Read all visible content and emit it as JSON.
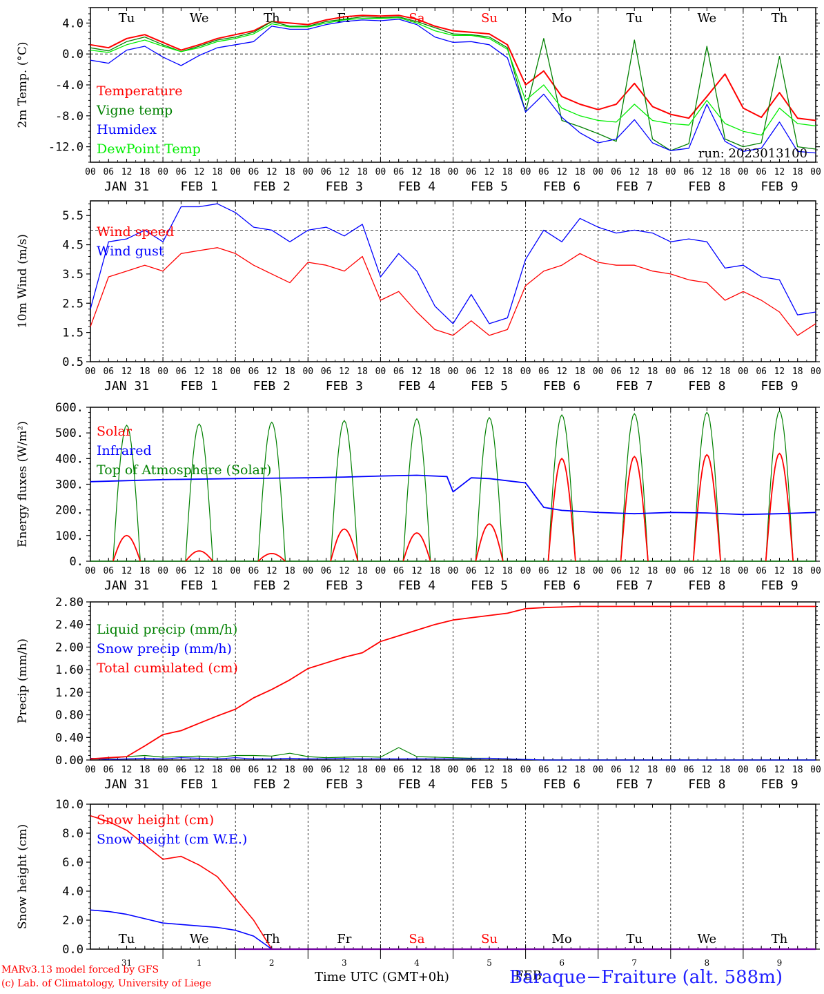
{
  "chart_data": [
    {
      "type": "line",
      "ylabel": "2m Temp. (°C)",
      "ylim": [
        -14.0,
        6.0
      ],
      "yticks": [
        "4.0",
        "0.0",
        "-4.0",
        "-8.0",
        "-12.0"
      ],
      "yticks_values": [
        4,
        0,
        -4,
        -8,
        -12
      ],
      "reference_line": 0,
      "day_labels": [
        "Tu",
        "We",
        "Th",
        "Fr",
        "Sa",
        "Su",
        "Mo",
        "Tu",
        "We",
        "Th"
      ],
      "day_label_colors": [
        "#000000",
        "#000000",
        "#000000",
        "#000000",
        "#ff0000",
        "#ff0000",
        "#000000",
        "#000000",
        "#000000",
        "#000000"
      ],
      "run_label": "run: 2023013100",
      "legend": [
        {
          "name": "Temperature",
          "color": "#ff0000"
        },
        {
          "name": "Vigne temp",
          "color": "#008000"
        },
        {
          "name": "Humidex",
          "color": "#0000ff"
        },
        {
          "name": "DewPoint Temp",
          "color": "#00ee00"
        }
      ],
      "x_hours": [
        0,
        6,
        12,
        18,
        24,
        30,
        36,
        42,
        48,
        54,
        60,
        66,
        72,
        78,
        84,
        90,
        96,
        102,
        108,
        114,
        120,
        126,
        132,
        138,
        144,
        150,
        156,
        162,
        168,
        174,
        180,
        186,
        192,
        198,
        204,
        210,
        216,
        222,
        228,
        234,
        240
      ],
      "series": [
        {
          "name": "Temperature",
          "color": "#ff0000",
          "values": [
            1.2,
            0.8,
            2.0,
            2.5,
            1.5,
            0.5,
            1.2,
            2.0,
            2.5,
            3.0,
            4.2,
            4.0,
            3.8,
            4.4,
            4.8,
            5.0,
            4.9,
            5.0,
            4.5,
            3.6,
            3.0,
            2.8,
            2.6,
            1.2,
            -4.0,
            -2.2,
            -5.5,
            -6.5,
            -7.2,
            -6.5,
            -3.8,
            -6.8,
            -7.8,
            -8.3,
            -5.5,
            -2.6,
            -7.0,
            -8.2,
            -5.0,
            -8.3,
            -8.6
          ]
        },
        {
          "name": "Vigne temp",
          "color": "#008000",
          "values": [
            0.8,
            0.4,
            1.6,
            2.2,
            1.2,
            0.3,
            1.0,
            1.8,
            2.2,
            2.8,
            4.2,
            3.6,
            3.6,
            4.2,
            4.5,
            4.8,
            4.7,
            4.8,
            4.2,
            3.4,
            2.6,
            2.5,
            2.2,
            0.8,
            -7.5,
            2.0,
            -8.6,
            -9.4,
            -10.3,
            -11.3,
            1.8,
            -11.0,
            -12.5,
            -11.6,
            1.0,
            -11.0,
            -12.0,
            -11.5,
            -0.3,
            -12.0,
            -12.3
          ]
        },
        {
          "name": "Humidex",
          "color": "#0000ff",
          "values": [
            -0.8,
            -1.2,
            0.5,
            1.0,
            -0.4,
            -1.5,
            -0.2,
            0.8,
            1.2,
            1.6,
            3.6,
            3.2,
            3.2,
            3.8,
            4.2,
            4.4,
            4.3,
            4.5,
            3.8,
            2.2,
            1.5,
            1.6,
            1.2,
            -0.5,
            -7.5,
            -5.2,
            -8.2,
            -10.2,
            -11.5,
            -11.0,
            -8.5,
            -11.5,
            -12.5,
            -12.2,
            -6.5,
            -11.3,
            -12.6,
            -12.2,
            -8.8,
            -12.6,
            -12.8
          ]
        },
        {
          "name": "DewPoint Temp",
          "color": "#00ee00",
          "values": [
            0.5,
            0.2,
            1.2,
            1.8,
            1.0,
            0.3,
            0.8,
            1.6,
            2.0,
            2.6,
            3.9,
            3.5,
            3.5,
            4.0,
            4.4,
            4.6,
            4.6,
            4.7,
            4.0,
            3.0,
            2.4,
            2.4,
            2.0,
            0.6,
            -6.0,
            -4.0,
            -7.0,
            -8.0,
            -8.6,
            -8.8,
            -6.5,
            -8.6,
            -9.0,
            -9.2,
            -6.0,
            -9.0,
            -10.0,
            -10.5,
            -7.0,
            -9.0,
            -9.3
          ]
        }
      ]
    },
    {
      "type": "line",
      "ylabel": "10m Wind (m/s)",
      "ylim": [
        0.5,
        6.0
      ],
      "yticks": [
        "5.5",
        "4.5",
        "3.5",
        "2.5",
        "1.5",
        "0.5"
      ],
      "yticks_values": [
        5.5,
        4.5,
        3.5,
        2.5,
        1.5,
        0.5
      ],
      "reference_line": 5.0,
      "legend": [
        {
          "name": "Wind speed",
          "color": "#ff0000"
        },
        {
          "name": "Wind gust",
          "color": "#0000ff"
        }
      ],
      "x_hours": [
        0,
        6,
        12,
        18,
        24,
        30,
        36,
        42,
        48,
        54,
        60,
        66,
        72,
        78,
        84,
        90,
        96,
        102,
        108,
        114,
        120,
        126,
        132,
        138,
        144,
        150,
        156,
        162,
        168,
        174,
        180,
        186,
        192,
        198,
        204,
        210,
        216,
        222,
        228,
        234,
        240
      ],
      "series": [
        {
          "name": "Wind speed",
          "color": "#ff0000",
          "values": [
            1.7,
            3.4,
            3.6,
            3.8,
            3.6,
            4.2,
            4.3,
            4.4,
            4.2,
            3.8,
            3.5,
            3.2,
            3.9,
            3.8,
            3.6,
            4.1,
            2.6,
            2.9,
            2.2,
            1.6,
            1.4,
            1.9,
            1.4,
            1.6,
            3.1,
            3.6,
            3.8,
            4.2,
            3.9,
            3.8,
            3.8,
            3.6,
            3.5,
            3.3,
            3.2,
            2.6,
            2.9,
            2.6,
            2.2,
            1.4,
            1.8
          ]
        },
        {
          "name": "Wind gust",
          "color": "#0000ff",
          "values": [
            2.3,
            4.6,
            4.7,
            5.0,
            4.6,
            5.8,
            5.8,
            5.9,
            5.6,
            5.1,
            5.0,
            4.6,
            5.0,
            5.1,
            4.8,
            5.2,
            3.4,
            4.2,
            3.6,
            2.4,
            1.8,
            2.8,
            1.8,
            2.0,
            4.0,
            5.0,
            4.6,
            5.4,
            5.1,
            4.9,
            5.0,
            4.9,
            4.6,
            4.7,
            4.6,
            3.7,
            3.8,
            3.4,
            3.3,
            2.1,
            2.2
          ]
        }
      ]
    },
    {
      "type": "line",
      "ylabel": "Energy fluxes (W/m²)",
      "ylim": [
        0,
        600
      ],
      "yticks": [
        "600.",
        "500.",
        "400.",
        "300.",
        "200.",
        "100.",
        "0."
      ],
      "yticks_values": [
        600,
        500,
        400,
        300,
        200,
        100,
        0
      ],
      "legend": [
        {
          "name": "Solar",
          "color": "#ff0000"
        },
        {
          "name": "Infrared",
          "color": "#0000ff"
        },
        {
          "name": "Top of Atmosphere (Solar)",
          "color": "#008000"
        }
      ],
      "solar_noon_hours": [
        12,
        36,
        60,
        84,
        108,
        132,
        156,
        180,
        204,
        228
      ],
      "daylight_half_width_hours": 4.5,
      "toa_peaks": [
        530,
        535,
        542,
        548,
        555,
        560,
        570,
        575,
        580,
        585
      ],
      "solar_peaks": [
        100,
        40,
        30,
        125,
        110,
        145,
        400,
        408,
        415,
        420
      ],
      "infrared_x_hours": [
        0,
        24,
        48,
        72,
        84,
        96,
        108,
        118,
        120,
        126,
        132,
        144,
        150,
        156,
        168,
        180,
        192,
        204,
        216,
        228,
        240
      ],
      "infrared_values": [
        310,
        318,
        322,
        325,
        328,
        332,
        335,
        330,
        270,
        325,
        322,
        305,
        210,
        198,
        190,
        185,
        190,
        188,
        182,
        185,
        190
      ]
    },
    {
      "type": "line",
      "ylabel": "Precip (mm/h)",
      "ylim": [
        0,
        2.8
      ],
      "yticks": [
        "2.80",
        "2.40",
        "2.00",
        "1.60",
        "1.20",
        "0.80",
        "0.40",
        "0.00"
      ],
      "yticks_values": [
        2.8,
        2.4,
        2.0,
        1.6,
        1.2,
        0.8,
        0.4,
        0.0
      ],
      "legend": [
        {
          "name": "Liquid precip (mm/h)",
          "color": "#008000"
        },
        {
          "name": "Snow precip (mm/h)",
          "color": "#0000ff"
        },
        {
          "name": "Total cumulated (cm)",
          "color": "#ff0000"
        }
      ],
      "x_hours": [
        0,
        6,
        12,
        18,
        24,
        30,
        36,
        42,
        48,
        54,
        60,
        66,
        72,
        78,
        84,
        90,
        96,
        102,
        108,
        114,
        120,
        126,
        132,
        138,
        144,
        150,
        156,
        162,
        168,
        174,
        180,
        186,
        192,
        198,
        204,
        210,
        216,
        222,
        228,
        234,
        240
      ],
      "series": [
        {
          "name": "Liquid precip (mm/h)",
          "color": "#008000",
          "values": [
            0.02,
            0.03,
            0.06,
            0.08,
            0.05,
            0.06,
            0.07,
            0.05,
            0.08,
            0.08,
            0.07,
            0.12,
            0.06,
            0.04,
            0.05,
            0.06,
            0.05,
            0.22,
            0.06,
            0.05,
            0.04,
            0.03,
            0.03,
            0.02,
            0.01,
            0,
            0,
            0,
            0,
            0,
            0,
            0,
            0,
            0,
            0,
            0,
            0,
            0,
            0,
            0,
            0
          ]
        },
        {
          "name": "Snow precip (mm/h)",
          "color": "#0000ff",
          "values": [
            0.03,
            0.01,
            0.02,
            0.03,
            0.02,
            0.04,
            0.03,
            0.02,
            0.04,
            0.02,
            0.02,
            0.03,
            0.02,
            0.02,
            0.03,
            0.02,
            0.02,
            0.02,
            0.02,
            0.02,
            0.02,
            0.02,
            0.03,
            0.02,
            0.01,
            0,
            0,
            0,
            0,
            0,
            0,
            0,
            0,
            0,
            0,
            0,
            0,
            0,
            0,
            0,
            0
          ]
        },
        {
          "name": "Total cumulated (cm)",
          "color": "#ff0000",
          "values": [
            0.02,
            0.04,
            0.06,
            0.25,
            0.45,
            0.52,
            0.65,
            0.78,
            0.9,
            1.1,
            1.25,
            1.42,
            1.62,
            1.72,
            1.82,
            1.9,
            2.1,
            2.2,
            2.3,
            2.4,
            2.48,
            2.52,
            2.56,
            2.6,
            2.68,
            2.7,
            2.71,
            2.72,
            2.72,
            2.72,
            2.72,
            2.72,
            2.72,
            2.72,
            2.72,
            2.72,
            2.72,
            2.72,
            2.72,
            2.72,
            2.72
          ]
        }
      ]
    },
    {
      "type": "line",
      "ylabel": "Snow height (cm)",
      "ylim": [
        0,
        10
      ],
      "yticks": [
        "10.0",
        "8.0",
        "6.0",
        "4.0",
        "2.0",
        "0.0"
      ],
      "yticks_values": [
        10,
        8,
        6,
        4,
        2,
        0
      ],
      "legend": [
        {
          "name": "Snow height (cm)",
          "color": "#ff0000"
        },
        {
          "name": "Snow height (cm W.E.)",
          "color": "#0000ff"
        }
      ],
      "day_labels": [
        "Tu",
        "We",
        "Th",
        "Fr",
        "Sa",
        "Su",
        "Mo",
        "Tu",
        "We",
        "Th"
      ],
      "day_label_colors": [
        "#000000",
        "#000000",
        "#000000",
        "#000000",
        "#ff0000",
        "#ff0000",
        "#000000",
        "#000000",
        "#000000",
        "#000000"
      ],
      "day_numbers": [
        "31",
        "1",
        "2",
        "3",
        "4",
        "5",
        "6",
        "7",
        "8",
        "9"
      ],
      "x_hours": [
        0,
        6,
        12,
        18,
        24,
        30,
        36,
        42,
        48,
        54,
        60,
        66,
        72,
        78,
        84,
        90,
        96,
        102,
        108,
        114,
        120,
        126,
        132,
        138,
        144,
        150,
        156,
        162,
        168,
        174,
        180,
        186,
        192,
        198,
        204,
        210,
        216,
        222,
        228,
        234,
        240
      ],
      "series": [
        {
          "name": "Snow height (cm)",
          "color": "#ff0000",
          "values": [
            9.2,
            8.8,
            8.2,
            7.2,
            6.2,
            6.4,
            5.8,
            5.0,
            3.5,
            2.0,
            0,
            0,
            0,
            0,
            0,
            0,
            0,
            0,
            0,
            0,
            0,
            0,
            0,
            0,
            0,
            0,
            0,
            0,
            0,
            0,
            0,
            0,
            0,
            0,
            0,
            0,
            0,
            0,
            0,
            0,
            0
          ]
        },
        {
          "name": "Snow height (cm W.E.)",
          "color": "#0000ff",
          "values": [
            2.7,
            2.6,
            2.4,
            2.1,
            1.8,
            1.7,
            1.6,
            1.5,
            1.3,
            0.9,
            0,
            0,
            0,
            0,
            0,
            0,
            0,
            0,
            0,
            0,
            0,
            0,
            0,
            0,
            0,
            0,
            0,
            0,
            0,
            0,
            0,
            0,
            0,
            0,
            0,
            0,
            0,
            0,
            0,
            0,
            0
          ]
        }
      ]
    }
  ],
  "x_axis": {
    "hour_ticks": [
      "00",
      "06",
      "12",
      "18"
    ],
    "final_tick": "00",
    "date_labels": [
      "JAN 31",
      "FEB  1",
      "FEB  2",
      "FEB  3",
      "FEB  4",
      "FEB  5",
      "FEB  6",
      "FEB  7",
      "FEB  8",
      "FEB  9"
    ]
  },
  "footer": {
    "credit_line1": "MARv3.13 model forced by GFS",
    "credit_line2": "(c) Lab. of Climatology, University of Liege",
    "xlabel": "Time UTC (GMT+0h)",
    "station": "Baraque−Fraiture (alt. 588m)",
    "overlap_label": "FEB"
  }
}
